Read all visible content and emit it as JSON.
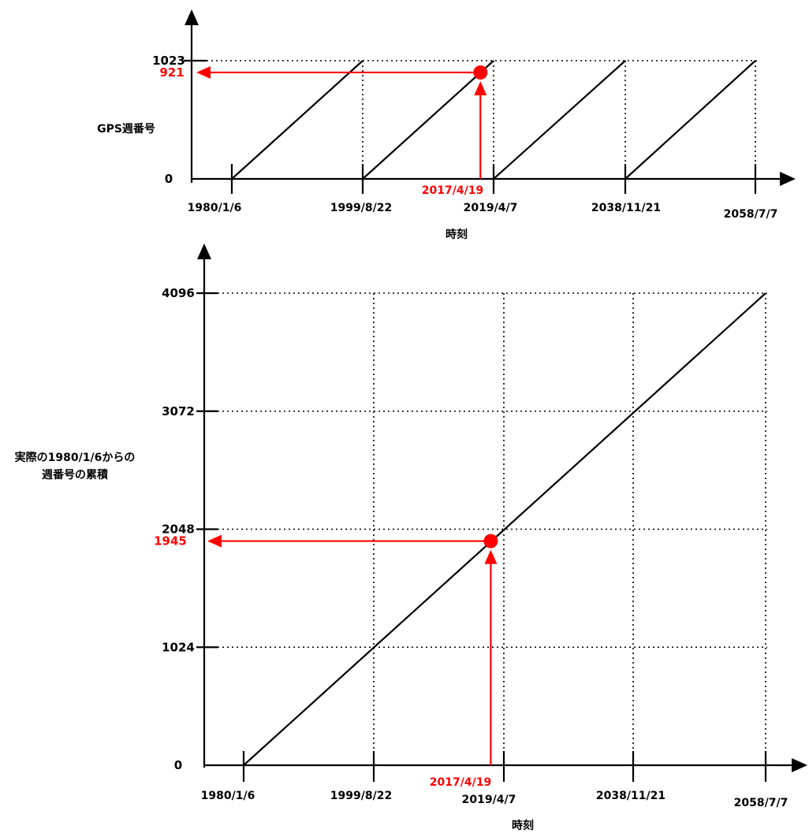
{
  "chart_data": [
    {
      "type": "line",
      "title": "",
      "xlabel": "時刻",
      "ylabel": "GPS週番号",
      "x_ticks": [
        "1980/1/6",
        "1999/8/22",
        "2019/4/7",
        "2038/11/21",
        "2058/7/7"
      ],
      "y_ticks": [
        "0",
        "1023"
      ],
      "ylim": [
        0,
        1023
      ],
      "series": [
        {
          "type": "sawtooth",
          "segments": [
            {
              "from": [
                "1980/1/6",
                0
              ],
              "to": [
                "1999/8/22",
                1023
              ]
            },
            {
              "from": [
                "1999/8/22",
                0
              ],
              "to": [
                "2019/4/7",
                1023
              ]
            },
            {
              "from": [
                "2019/4/7",
                0
              ],
              "to": [
                "2038/11/21",
                1023
              ]
            },
            {
              "from": [
                "2038/11/21",
                0
              ],
              "to": [
                "2058/7/7",
                1023
              ]
            }
          ]
        }
      ],
      "highlight": {
        "x_label": "2017/4/19",
        "x_value": 1945,
        "y_label": "921",
        "y_value": 921,
        "color": "#ff0000"
      }
    },
    {
      "type": "line",
      "title": "",
      "xlabel": "時刻",
      "ylabel_lines": [
        "実際の1980/1/6からの",
        "週番号の累積"
      ],
      "x_ticks": [
        "1980/1/6",
        "1999/8/22",
        "2019/4/7",
        "2038/11/21",
        "2058/7/7"
      ],
      "y_ticks": [
        "0",
        "1024",
        "2048",
        "3072",
        "4096"
      ],
      "ylim": [
        0,
        4096
      ],
      "series": [
        {
          "points": [
            [
              "1980/1/6",
              0
            ],
            [
              "2058/7/7",
              4096
            ]
          ]
        }
      ],
      "highlight": {
        "x_label": "2017/4/19",
        "x_value": 1945,
        "y_label": "1945",
        "y_value": 1945,
        "color": "#ff0000"
      }
    }
  ]
}
